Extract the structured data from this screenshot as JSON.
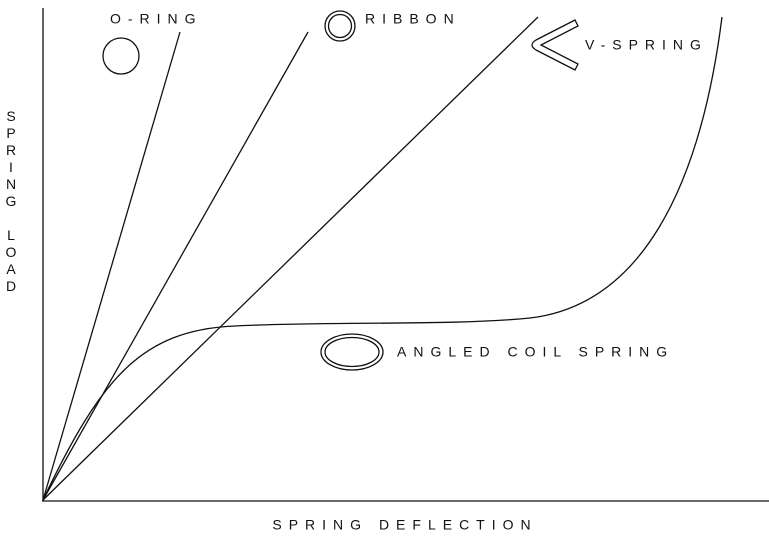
{
  "axes": {
    "y_label": "SPRING LOAD",
    "x_label": "SPRING DEFLECTION"
  },
  "curves": [
    {
      "label": "O-RING"
    },
    {
      "label": "RIBBON"
    },
    {
      "label": "V-SPRING"
    },
    {
      "label": "ANGLED COIL SPRING"
    }
  ]
}
